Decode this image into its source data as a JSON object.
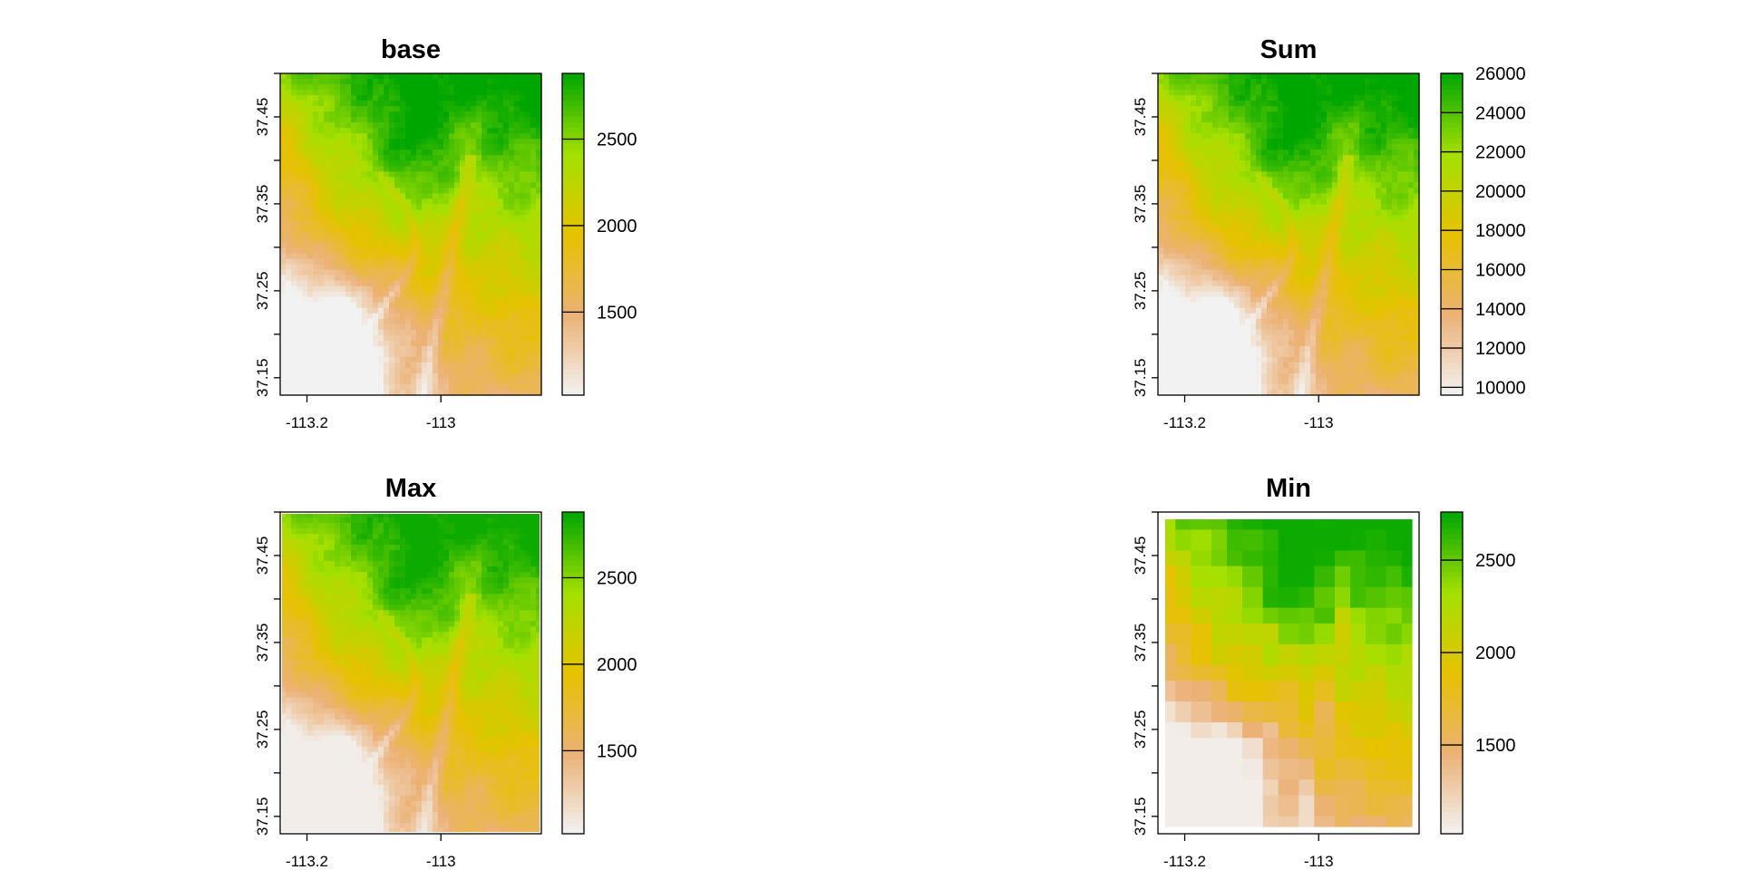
{
  "chart_data": [
    {
      "type": "heatmap",
      "title": "base",
      "xlabel": "",
      "ylabel": "",
      "x_ticks": [
        -113.2,
        -113
      ],
      "x_tick_labels": [
        "-113.2",
        "-113"
      ],
      "y_ticks": [
        37.15,
        37.25,
        37.35,
        37.45
      ],
      "y_tick_labels": [
        "37.15",
        "37.25",
        "37.35",
        "37.45"
      ],
      "xlim": [
        -113.24,
        -112.85
      ],
      "ylim": [
        37.13,
        37.5
      ],
      "legend": {
        "range": [
          1020,
          2880
        ],
        "ticks": [
          1500,
          2000,
          2500
        ],
        "tick_labels": [
          "1500",
          "2000",
          "2500"
        ],
        "placement": "right",
        "colors": [
          "#f2f2f2",
          "#ecb176",
          "#e6c200",
          "#a5e000",
          "#00a600"
        ]
      },
      "border": false,
      "inset": false
    },
    {
      "type": "heatmap",
      "title": "Sum",
      "xlabel": "",
      "ylabel": "",
      "x_ticks": [
        -113.2,
        -113
      ],
      "x_tick_labels": [
        "-113.2",
        "-113"
      ],
      "y_ticks": [
        37.15,
        37.25,
        37.35,
        37.45
      ],
      "y_tick_labels": [
        "37.15",
        "37.25",
        "37.35",
        "37.45"
      ],
      "xlim": [
        -113.24,
        -112.85
      ],
      "ylim": [
        37.13,
        37.5
      ],
      "legend": {
        "range": [
          9600,
          26000
        ],
        "ticks": [
          10000,
          12000,
          14000,
          16000,
          18000,
          20000,
          22000,
          24000,
          26000
        ],
        "tick_labels": [
          "10000",
          "12000",
          "14000",
          "16000",
          "18000",
          "20000",
          "22000",
          "24000",
          "26000"
        ],
        "placement": "right",
        "colors": [
          "#f2f2f2",
          "#ecb176",
          "#e6c200",
          "#a5e000",
          "#00a600"
        ]
      },
      "border": false,
      "inset": false
    },
    {
      "type": "heatmap",
      "title": "Max",
      "xlabel": "",
      "ylabel": "",
      "x_ticks": [
        -113.2,
        -113
      ],
      "x_tick_labels": [
        "-113.2",
        "-113"
      ],
      "y_ticks": [
        37.15,
        37.25,
        37.35,
        37.45
      ],
      "y_tick_labels": [
        "37.15",
        "37.25",
        "37.35",
        "37.45"
      ],
      "xlim": [
        -113.24,
        -112.85
      ],
      "ylim": [
        37.13,
        37.5
      ],
      "legend": {
        "range": [
          1020,
          2880
        ],
        "ticks": [
          1500,
          2000,
          2500
        ],
        "tick_labels": [
          "1500",
          "2000",
          "2500"
        ],
        "placement": "right",
        "colors": [
          "#f2f2f2",
          "#ecb176",
          "#e6c200",
          "#a5e000",
          "#00a600"
        ]
      },
      "border": true,
      "inset": false
    },
    {
      "type": "heatmap",
      "title": "Min",
      "xlabel": "",
      "ylabel": "",
      "x_ticks": [
        -113.2,
        -113
      ],
      "x_tick_labels": [
        "-113.2",
        "-113"
      ],
      "y_ticks": [
        37.15,
        37.25,
        37.35,
        37.45
      ],
      "y_tick_labels": [
        "37.15",
        "37.25",
        "37.35",
        "37.45"
      ],
      "xlim": [
        -113.24,
        -112.85
      ],
      "ylim": [
        37.13,
        37.5
      ],
      "legend": {
        "range": [
          1020,
          2760
        ],
        "ticks": [
          1500,
          2000,
          2500
        ],
        "tick_labels": [
          "1500",
          "2000",
          "2500"
        ],
        "placement": "right",
        "colors": [
          "#f2f2f2",
          "#ecb176",
          "#e6c200",
          "#a5e000",
          "#00a600"
        ]
      },
      "border": true,
      "inset": true
    }
  ]
}
